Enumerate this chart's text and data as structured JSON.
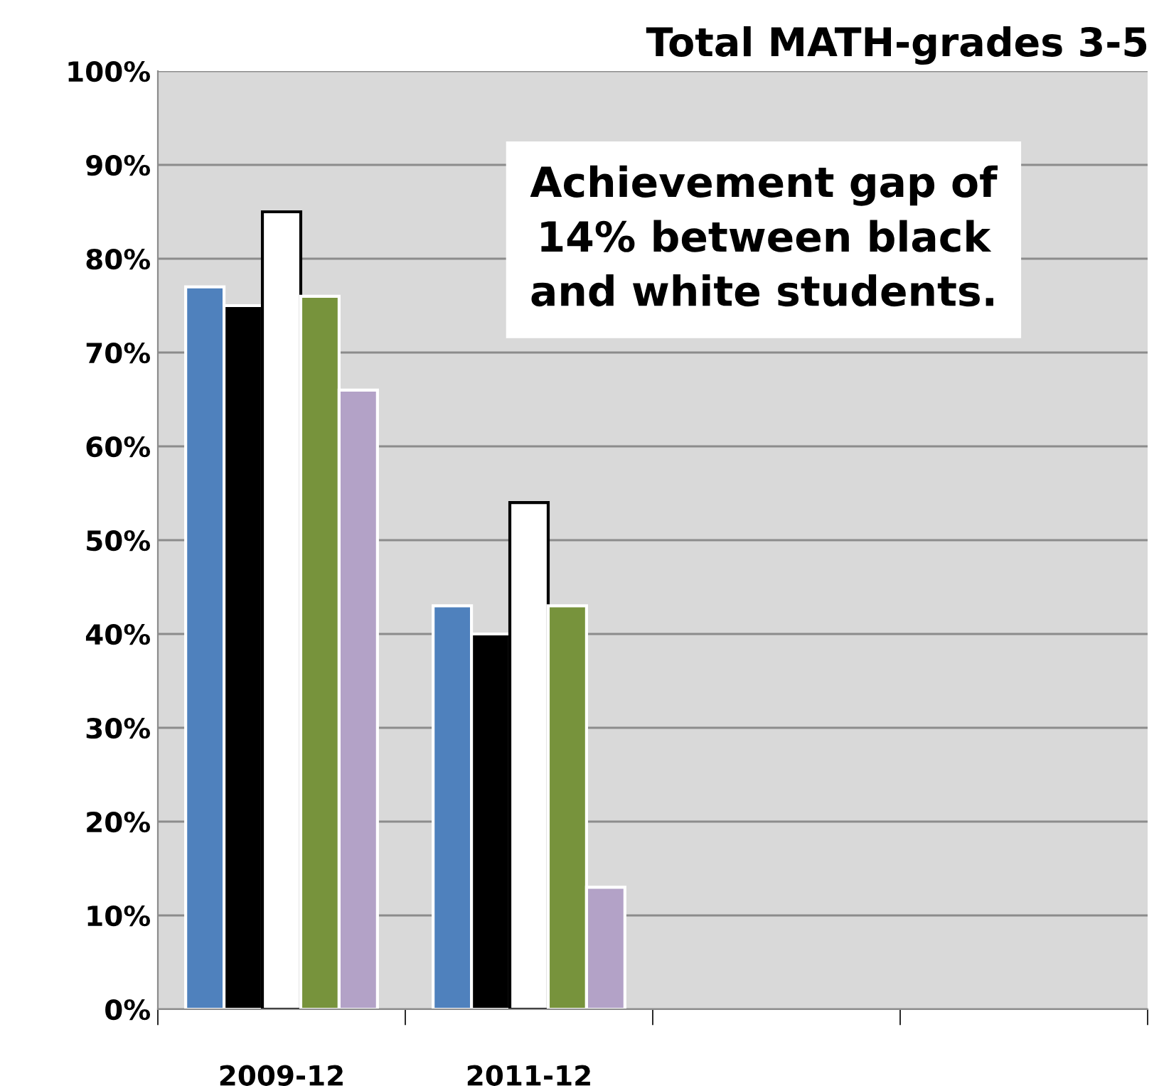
{
  "chart_data": {
    "type": "bar",
    "title": "Total MATH-grades 3-5",
    "categories": [
      "2009-12",
      "2011-12",
      null,
      null
    ],
    "series": [
      {
        "color": "#4f81bd",
        "values": [
          77,
          43,
          null,
          null
        ]
      },
      {
        "color": "#000000",
        "values": [
          75,
          40,
          null,
          null
        ]
      },
      {
        "color": "#ffffff",
        "values": [
          85,
          54,
          null,
          null
        ]
      },
      {
        "color": "#77933c",
        "values": [
          76,
          43,
          null,
          null
        ]
      },
      {
        "color": "#b3a2c7",
        "values": [
          66,
          13,
          null,
          null
        ]
      }
    ],
    "ylim": [
      0,
      100
    ],
    "yticks": [
      {
        "value": 0,
        "label": "0%"
      },
      {
        "value": 10,
        "label": "10%"
      },
      {
        "value": 20,
        "label": "20%"
      },
      {
        "value": 30,
        "label": "30%"
      },
      {
        "value": 40,
        "label": "40%"
      },
      {
        "value": 50,
        "label": "50%"
      },
      {
        "value": 60,
        "label": "60%"
      },
      {
        "value": 70,
        "label": "70%"
      },
      {
        "value": 80,
        "label": "80%"
      },
      {
        "value": 90,
        "label": "90%"
      },
      {
        "value": 100,
        "label": "100%"
      }
    ],
    "grid": "y",
    "annotations": [
      "Achievement gap of\n14% between black\nand white students."
    ]
  }
}
